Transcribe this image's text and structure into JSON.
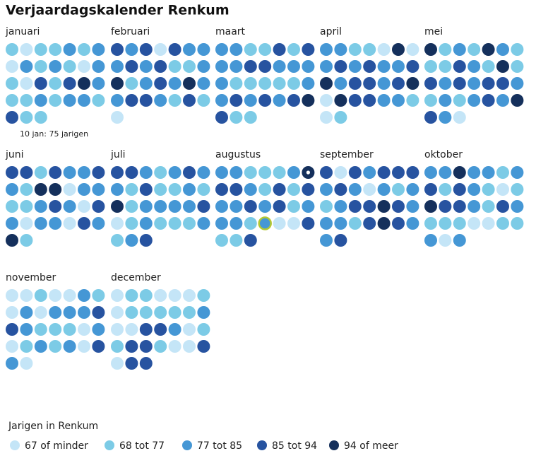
{
  "title": "Verjaardagskalender Renkum",
  "tooltip": "10 jan: 75 jarigen",
  "legend": {
    "title": "Jarigen in Renkum",
    "items": [
      {
        "label": "67 of minder",
        "color": "#c4e5f7"
      },
      {
        "label": "68 tot 77",
        "color": "#7ccbe6"
      },
      {
        "label": "77 tot 85",
        "color": "#4597d5"
      },
      {
        "label": "85 tot 94",
        "color": "#2753a0"
      },
      {
        "label": "94 of meer",
        "color": "#15305c"
      }
    ]
  },
  "months": [
    {
      "name": "januari",
      "days": [
        1,
        0,
        1,
        1,
        2,
        1,
        2,
        0,
        2,
        1,
        2,
        1,
        0,
        2,
        1,
        0,
        3,
        1,
        3,
        4,
        2,
        1,
        1,
        2,
        1,
        2,
        2,
        1,
        3,
        1,
        1
      ]
    },
    {
      "name": "februari",
      "days": [
        3,
        2,
        3,
        0,
        3,
        2,
        2,
        2,
        3,
        2,
        3,
        1,
        1,
        2,
        4,
        1,
        2,
        3,
        2,
        4,
        2,
        2,
        3,
        3,
        2,
        1,
        3,
        1,
        0
      ]
    },
    {
      "name": "maart",
      "days": [
        2,
        2,
        1,
        1,
        3,
        1,
        3,
        2,
        2,
        3,
        3,
        2,
        2,
        2,
        2,
        1,
        1,
        1,
        1,
        1,
        2,
        2,
        3,
        2,
        3,
        2,
        3,
        4,
        3,
        1,
        1
      ]
    },
    {
      "name": "april",
      "days": [
        2,
        2,
        1,
        1,
        0,
        4,
        0,
        2,
        3,
        2,
        3,
        2,
        2,
        3,
        4,
        2,
        3,
        3,
        2,
        3,
        4,
        0,
        4,
        3,
        3,
        2,
        2,
        1,
        0,
        1
      ]
    },
    {
      "name": "mei",
      "days": [
        4,
        1,
        2,
        1,
        4,
        2,
        1,
        1,
        1,
        3,
        2,
        1,
        4,
        1,
        3,
        2,
        3,
        2,
        3,
        3,
        2,
        1,
        2,
        1,
        2,
        3,
        2,
        4,
        3,
        2,
        0
      ]
    },
    {
      "name": "juni",
      "days": [
        3,
        3,
        1,
        3,
        2,
        2,
        3,
        2,
        1,
        4,
        4,
        0,
        2,
        2,
        1,
        1,
        2,
        3,
        2,
        0,
        3,
        2,
        0,
        2,
        2,
        0,
        3,
        2,
        4,
        1
      ]
    },
    {
      "name": "juli",
      "days": [
        3,
        3,
        2,
        1,
        2,
        3,
        2,
        2,
        1,
        3,
        1,
        1,
        2,
        1,
        4,
        1,
        2,
        2,
        2,
        2,
        3,
        0,
        1,
        2,
        1,
        1,
        1,
        2,
        1,
        2,
        3
      ]
    },
    {
      "name": "augustus",
      "days": [
        2,
        2,
        1,
        1,
        1,
        2,
        4,
        3,
        3,
        2,
        1,
        3,
        1,
        3,
        2,
        2,
        3,
        2,
        3,
        1,
        2,
        2,
        2,
        1,
        2,
        0,
        0,
        3,
        1,
        1,
        3
      ]
    },
    {
      "name": "september",
      "days": [
        3,
        0,
        3,
        2,
        3,
        3,
        3,
        2,
        3,
        2,
        0,
        2,
        1,
        2,
        1,
        2,
        3,
        3,
        4,
        3,
        2,
        2,
        2,
        1,
        3,
        4,
        3,
        2,
        2,
        3
      ]
    },
    {
      "name": "oktober",
      "days": [
        2,
        2,
        4,
        2,
        2,
        1,
        2,
        3,
        1,
        3,
        2,
        1,
        0,
        1,
        4,
        3,
        3,
        2,
        1,
        3,
        2,
        1,
        1,
        1,
        0,
        0,
        1,
        1,
        2,
        0,
        2
      ]
    },
    {
      "name": "november",
      "days": [
        0,
        0,
        1,
        0,
        0,
        2,
        1,
        0,
        2,
        0,
        2,
        2,
        2,
        3,
        3,
        2,
        1,
        1,
        1,
        0,
        2,
        0,
        1,
        2,
        1,
        2,
        0,
        3,
        2,
        0
      ]
    },
    {
      "name": "december",
      "days": [
        0,
        1,
        1,
        0,
        0,
        0,
        1,
        0,
        1,
        1,
        1,
        1,
        1,
        2,
        0,
        0,
        3,
        3,
        2,
        0,
        1,
        1,
        3,
        3,
        1,
        0,
        0,
        3,
        0,
        3,
        3
      ]
    }
  ]
}
